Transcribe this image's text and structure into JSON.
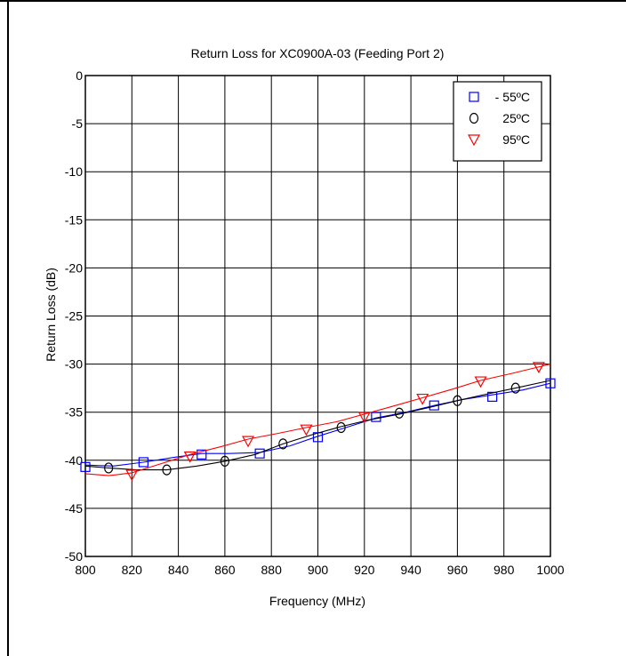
{
  "chart_data": {
    "type": "line",
    "title": "Return Loss for XC0900A-03 (Feeding Port 2)",
    "xlabel": "Frequency (MHz)",
    "ylabel": "Return Loss (dB)",
    "xlim": [
      800,
      1000
    ],
    "ylim": [
      -50,
      0
    ],
    "xticks": [
      "800",
      "820",
      "840",
      "860",
      "880",
      "900",
      "920",
      "940",
      "960",
      "980",
      "1000"
    ],
    "yticks": [
      "0",
      "-5",
      "-10",
      "-15",
      "-20",
      "-25",
      "-30",
      "-35",
      "-40",
      "-45",
      "-50"
    ],
    "grid": true,
    "legend_position": "top-right",
    "series": [
      {
        "name": "- 55ºC",
        "color": "#0000ff",
        "marker": "square",
        "line": [
          [
            800,
            -40.5
          ],
          [
            812,
            -40.6
          ],
          [
            825,
            -40.2
          ],
          [
            838,
            -39.7
          ],
          [
            850,
            -39.3
          ],
          [
            862,
            -39.3
          ],
          [
            875,
            -39.2
          ],
          [
            888,
            -38.5
          ],
          [
            900,
            -37.5
          ],
          [
            912,
            -36.6
          ],
          [
            925,
            -35.6
          ],
          [
            938,
            -35.0
          ],
          [
            950,
            -34.3
          ],
          [
            962,
            -33.7
          ],
          [
            975,
            -33.2
          ],
          [
            988,
            -32.7
          ],
          [
            1000,
            -32.0
          ]
        ],
        "markers": [
          [
            800,
            -40.7
          ],
          [
            825,
            -40.2
          ],
          [
            850,
            -39.4
          ],
          [
            875,
            -39.3
          ],
          [
            900,
            -37.6
          ],
          [
            925,
            -35.5
          ],
          [
            950,
            -34.3
          ],
          [
            975,
            -33.4
          ],
          [
            1000,
            -32.0
          ]
        ]
      },
      {
        "name": "25ºC",
        "color": "#000000",
        "marker": "circle",
        "line": [
          [
            800,
            -40.6
          ],
          [
            810,
            -40.8
          ],
          [
            822,
            -41.0
          ],
          [
            835,
            -41.0
          ],
          [
            848,
            -40.6
          ],
          [
            860,
            -40.1
          ],
          [
            873,
            -39.4
          ],
          [
            885,
            -38.3
          ],
          [
            898,
            -37.3
          ],
          [
            910,
            -36.5
          ],
          [
            922,
            -35.8
          ],
          [
            935,
            -35.2
          ],
          [
            948,
            -34.5
          ],
          [
            960,
            -33.8
          ],
          [
            973,
            -33.1
          ],
          [
            985,
            -32.5
          ],
          [
            1000,
            -31.7
          ]
        ],
        "markers": [
          [
            810,
            -40.8
          ],
          [
            835,
            -41.0
          ],
          [
            860,
            -40.1
          ],
          [
            885,
            -38.3
          ],
          [
            910,
            -36.6
          ],
          [
            935,
            -35.1
          ],
          [
            960,
            -33.8
          ],
          [
            985,
            -32.5
          ]
        ]
      },
      {
        "name": "95ºC",
        "color": "#ff0000",
        "marker": "triangle-down",
        "line": [
          [
            800,
            -41.4
          ],
          [
            810,
            -41.6
          ],
          [
            820,
            -41.3
          ],
          [
            832,
            -40.4
          ],
          [
            845,
            -39.4
          ],
          [
            858,
            -38.6
          ],
          [
            870,
            -37.8
          ],
          [
            883,
            -37.2
          ],
          [
            895,
            -36.6
          ],
          [
            908,
            -36.0
          ],
          [
            920,
            -35.2
          ],
          [
            932,
            -34.4
          ],
          [
            945,
            -33.5
          ],
          [
            958,
            -32.6
          ],
          [
            970,
            -31.7
          ],
          [
            983,
            -31.0
          ],
          [
            1000,
            -30.0
          ]
        ],
        "markers": [
          [
            820,
            -41.5
          ],
          [
            845,
            -39.6
          ],
          [
            870,
            -38.0
          ],
          [
            895,
            -36.8
          ],
          [
            920,
            -35.5
          ],
          [
            945,
            -33.6
          ],
          [
            970,
            -31.8
          ],
          [
            995,
            -30.3
          ]
        ]
      }
    ]
  }
}
